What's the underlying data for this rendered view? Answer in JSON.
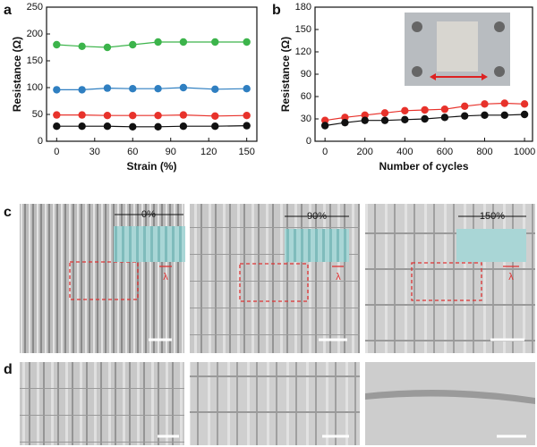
{
  "chart_data": [
    {
      "type": "line",
      "panel": "a",
      "x_label": "Strain (%)",
      "y_label": "Resistance (Ω)",
      "x": [
        0,
        20,
        40,
        60,
        80,
        100,
        125,
        150
      ],
      "series": [
        {
          "color": "#3cb44b",
          "values": [
            180,
            177,
            175,
            180,
            185,
            185,
            185,
            185
          ]
        },
        {
          "color": "#2f7fc1",
          "values": [
            96,
            96,
            99,
            98,
            98,
            100,
            97,
            98
          ]
        },
        {
          "color": "#e8322b",
          "values": [
            49,
            49,
            48,
            48,
            48,
            49,
            47,
            48
          ]
        },
        {
          "color": "#111111",
          "values": [
            28,
            28,
            28,
            27,
            27,
            28,
            28,
            29
          ]
        }
      ],
      "xlim": [
        -8,
        158
      ],
      "xticks": [
        0,
        30,
        60,
        90,
        120,
        150
      ],
      "ylim": [
        0,
        250
      ],
      "yticks": [
        0,
        50,
        100,
        150,
        200,
        250
      ]
    },
    {
      "type": "line",
      "panel": "b",
      "x_label": "Number of cycles",
      "y_label": "Resistance (Ω)",
      "x": [
        0,
        100,
        200,
        300,
        400,
        500,
        600,
        700,
        800,
        900,
        1000
      ],
      "series": [
        {
          "color": "#e8322b",
          "values": [
            28,
            32,
            35,
            38,
            41,
            42,
            43,
            47,
            50,
            51,
            50
          ]
        },
        {
          "color": "#111111",
          "values": [
            21,
            25,
            28,
            28,
            29,
            30,
            32,
            34,
            35,
            35,
            36
          ]
        }
      ],
      "xlim": [
        -50,
        1040
      ],
      "xticks": [
        0,
        200,
        400,
        600,
        800,
        1000
      ],
      "ylim": [
        0,
        180
      ],
      "yticks": [
        0,
        30,
        60,
        90,
        120,
        150,
        180
      ]
    }
  ],
  "figure": {
    "panel_c": "c",
    "panel_d": "d",
    "strain_labels": [
      "0%",
      "90%",
      "150%"
    ],
    "wavelength_label": "λ"
  }
}
